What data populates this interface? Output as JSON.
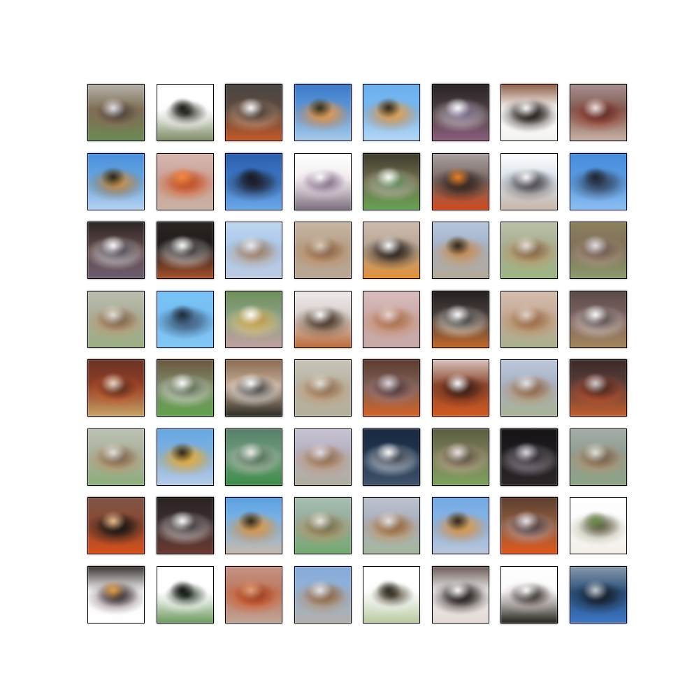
{
  "grid": {
    "rows": 8,
    "cols": 8,
    "tiles": [
      {
        "bg": "#7a6e55",
        "top": "#b9b3ad",
        "mid": "#8a6a5a",
        "bottom": "#6d8a55",
        "accent": "#e8e4ea",
        "blob": "#3e3a35"
      },
      {
        "bg": "#ffffff",
        "top": "#ffffff",
        "mid": "#f2f2f2",
        "bottom": "#7c8a65",
        "accent": "#1b1b15",
        "blob": "#2a2a20"
      },
      {
        "bg": "#5b4a40",
        "top": "#4b4542",
        "mid": "#c9a38c",
        "bottom": "#c25a2a",
        "accent": "#ffffff",
        "blob": "#2a2220"
      },
      {
        "bg": "#5f98d8",
        "top": "#3f79c4",
        "mid": "#c9844a",
        "bottom": "#a9cbe8",
        "accent": "#2a2a1a",
        "blob": "#e0a060"
      },
      {
        "bg": "#7ab9ef",
        "top": "#6fb0ea",
        "mid": "#c88a4e",
        "bottom": "#b7d6f3",
        "accent": "#2a2418",
        "blob": "#ddaa66"
      },
      {
        "bg": "#4a3d40",
        "top": "#2a2428",
        "mid": "#d9d3d8",
        "bottom": "#8b5f7c",
        "accent": "#ffffff",
        "blob": "#5b4b6e"
      },
      {
        "bg": "#ffffff",
        "top": "#8a5a46",
        "mid": "#2b2520",
        "bottom": "#f4f2ef",
        "accent": "#ffffff",
        "blob": "#1d1714"
      },
      {
        "bg": "#7e5a52",
        "top": "#a89090",
        "mid": "#9b3c2c",
        "bottom": "#c9b4a8",
        "accent": "#f1e5e5",
        "blob": "#532c28"
      },
      {
        "bg": "#6aa6df",
        "top": "#4d8fd6",
        "mid": "#8a7050",
        "bottom": "#b7d2ee",
        "accent": "#232318",
        "blob": "#d79a55"
      },
      {
        "bg": "#c8a196",
        "top": "#d6b7b3",
        "mid": "#d35f2f",
        "bottom": "#c9b2a5",
        "accent": "#ef8b45",
        "blob": "#b24f2c"
      },
      {
        "bg": "#3f79c4",
        "top": "#2c5da8",
        "mid": "#25324a",
        "bottom": "#6fa8e4",
        "accent": "#171a22",
        "blob": "#223"
      },
      {
        "bg": "#f3eef0",
        "top": "#ffffff",
        "mid": "#d6c6d2",
        "bottom": "#7a6b7c",
        "accent": "#ffffff",
        "blob": "#6b5574"
      },
      {
        "bg": "#6b6a4a",
        "top": "#3f3a30",
        "mid": "#cdbfbe",
        "bottom": "#69a258",
        "accent": "#ffffff",
        "blob": "#4a7a42"
      },
      {
        "bg": "#7a6a66",
        "top": "#aaa2a2",
        "mid": "#2a2220",
        "bottom": "#cc4a1f",
        "accent": "#e9842f",
        "blob": "#3a2a26"
      },
      {
        "bg": "#d8e2ea",
        "top": "#ffffff",
        "mid": "#6c6a70",
        "bottom": "#c7b6a9",
        "accent": "#ffffff",
        "blob": "#3f3b44"
      },
      {
        "bg": "#5b9ce0",
        "top": "#4b8bd7",
        "mid": "#3a4b63",
        "bottom": "#8fbef0",
        "accent": "#1d2433",
        "blob": "#354660"
      },
      {
        "bg": "#5a4745",
        "top": "#2d2626",
        "mid": "#e9e6ea",
        "bottom": "#6d5d70",
        "accent": "#ffffff",
        "blob": "#2c2330"
      },
      {
        "bg": "#1f1b1a",
        "top": "#2b2522",
        "mid": "#e7e4e6",
        "bottom": "#a6542f",
        "accent": "#ffffff",
        "blob": "#161311"
      },
      {
        "bg": "#a9c7ea",
        "top": "#c1d6ee",
        "mid": "#b79c86",
        "bottom": "#bfcbe0",
        "accent": "#e9eef5",
        "blob": "#8f7766"
      },
      {
        "bg": "#b2a08a",
        "top": "#c9b7a5",
        "mid": "#c08a62",
        "bottom": "#b9a896",
        "accent": "#dccfc2",
        "blob": "#7a5a44"
      },
      {
        "bg": "#b6a696",
        "top": "#cdbdb0",
        "mid": "#3a2f28",
        "bottom": "#e08f38",
        "accent": "#ffffff",
        "blob": "#2a2220"
      },
      {
        "bg": "#a4b2c8",
        "top": "#b9c7da",
        "mid": "#c89866",
        "bottom": "#b4a896",
        "accent": "#2a2418",
        "blob": "#bb8a5a"
      },
      {
        "bg": "#a6ad92",
        "top": "#bac2aa",
        "mid": "#c0905f",
        "bottom": "#9fb585",
        "accent": "#e9e2d8",
        "blob": "#6e5b44"
      },
      {
        "bg": "#7d705a",
        "top": "#8b8060",
        "mid": "#b59586",
        "bottom": "#8c9a70",
        "accent": "#e6e1e6",
        "blob": "#5a4a44"
      },
      {
        "bg": "#a8ac9a",
        "top": "#bcbfb0",
        "mid": "#c2926a",
        "bottom": "#9caf84",
        "accent": "#e5e2da",
        "blob": "#6a5948"
      },
      {
        "bg": "#78bff1",
        "top": "#7cc0f1",
        "mid": "#3a4f6a",
        "bottom": "#86c6f2",
        "accent": "#1f2a38",
        "blob": "#4a6b8c"
      },
      {
        "bg": "#8a9f86",
        "top": "#6f8f5a",
        "mid": "#e4d080",
        "bottom": "#c1a0a0",
        "accent": "#ffffff",
        "blob": "#b08a42"
      },
      {
        "bg": "#d8cfcc",
        "top": "#efeaea",
        "mid": "#6b5a4a",
        "bottom": "#b86a3a",
        "accent": "#ffffff",
        "blob": "#3b2a22"
      },
      {
        "bg": "#c9a9a8",
        "top": "#d8bebf",
        "mid": "#c5845a",
        "bottom": "#c6aaa8",
        "accent": "#e9d8d6",
        "blob": "#9c6a52"
      },
      {
        "bg": "#4a403e",
        "top": "#23201f",
        "mid": "#f1efe9",
        "bottom": "#c16a2c",
        "accent": "#ffffff",
        "blob": "#1b1817"
      },
      {
        "bg": "#c4a998",
        "top": "#d4bfb0",
        "mid": "#b7875c",
        "bottom": "#a9b08e",
        "accent": "#e2d6cc",
        "blob": "#8b6448"
      },
      {
        "bg": "#7b6460",
        "top": "#5a4a48",
        "mid": "#d9d3d4",
        "bottom": "#a4865e",
        "accent": "#ffffff",
        "blob": "#3a2c2a"
      },
      {
        "bg": "#8a3f2a",
        "top": "#6a3326",
        "mid": "#c75a2c",
        "bottom": "#c8a46a",
        "accent": "#f1d9c8",
        "blob": "#3e221a"
      },
      {
        "bg": "#7d8a6a",
        "top": "#6a553e",
        "mid": "#e6e3e4",
        "bottom": "#62a24e",
        "accent": "#ffffff",
        "blob": "#3a5030"
      },
      {
        "bg": "#c1aa96",
        "top": "#8a6a52",
        "mid": "#f2efef",
        "bottom": "#2c2a22",
        "accent": "#ffffff",
        "blob": "#1c1a15"
      },
      {
        "bg": "#b6b3a6",
        "top": "#c8c5b9",
        "mid": "#c19469",
        "bottom": "#b5b09c",
        "accent": "#e6e3dc",
        "blob": "#806550"
      },
      {
        "bg": "#7c5f55",
        "top": "#5b3a30",
        "mid": "#9c7a85",
        "bottom": "#d06428",
        "accent": "#e2dbe4",
        "blob": "#3a2824"
      },
      {
        "bg": "#8a4a30",
        "top": "#d8c3c0",
        "mid": "#632a1c",
        "bottom": "#d05a22",
        "accent": "#ffffff",
        "blob": "#2d1b15"
      },
      {
        "bg": "#a7b2c4",
        "top": "#bcc7d8",
        "mid": "#b88c64",
        "bottom": "#a9b394",
        "accent": "#e3e7ed",
        "blob": "#7a5d48"
      },
      {
        "bg": "#5a3e3a",
        "top": "#3a2a28",
        "mid": "#c05030",
        "bottom": "#c06030",
        "accent": "#d9d0d4",
        "blob": "#2a1d1a"
      },
      {
        "bg": "#a8b09e",
        "top": "#bcc2b4",
        "mid": "#c0926a",
        "bottom": "#8fae7e",
        "accent": "#e6e3de",
        "blob": "#6a5a48"
      },
      {
        "bg": "#7fb2e0",
        "top": "#6aa7df",
        "mid": "#d6a23c",
        "bottom": "#b9cbe6",
        "accent": "#2a2418",
        "blob": "#e0b050"
      },
      {
        "bg": "#6f9a7c",
        "top": "#587f6a",
        "mid": "#c9c2bf",
        "bottom": "#3f8a4a",
        "accent": "#eef0ec",
        "blob": "#2f5a3a"
      },
      {
        "bg": "#b3afbe",
        "top": "#c7c3d2",
        "mid": "#c0906a",
        "bottom": "#b2ad9e",
        "accent": "#e4e0e8",
        "blob": "#816650"
      },
      {
        "bg": "#20344c",
        "top": "#1a2a40",
        "mid": "#e9edf2",
        "bottom": "#41546b",
        "accent": "#ffffff",
        "blob": "#111a26"
      },
      {
        "bg": "#7a7e5a",
        "top": "#5b5d3f",
        "mid": "#c9a59a",
        "bottom": "#7ea160",
        "accent": "#efe6e6",
        "blob": "#3d4029"
      },
      {
        "bg": "#1e1a1e",
        "top": "#171417",
        "mid": "#b8b0bc",
        "bottom": "#2c2628",
        "accent": "#dedbe2",
        "blob": "#0f0c0f"
      },
      {
        "bg": "#8e9c92",
        "top": "#a3aea6",
        "mid": "#bd9066",
        "bottom": "#90a488",
        "accent": "#e3e4df",
        "blob": "#5f5446"
      },
      {
        "bg": "#8a4a34",
        "top": "#7a5548",
        "mid": "#1f1a18",
        "bottom": "#d5521e",
        "accent": "#f0c090",
        "blob": "#161210"
      },
      {
        "bg": "#3b2f2e",
        "top": "#2a2222",
        "mid": "#e7e2e4",
        "bottom": "#6a3a32",
        "accent": "#ffffff",
        "blob": "#181313"
      },
      {
        "bg": "#7fb6e6",
        "top": "#5f9fdd",
        "mid": "#c78a4a",
        "bottom": "#c8b8aa",
        "accent": "#2a2418",
        "blob": "#d9a05a"
      },
      {
        "bg": "#93aa9a",
        "top": "#a9c0b2",
        "mid": "#c28f5e",
        "bottom": "#77a874",
        "accent": "#ebe9e2",
        "blob": "#5d6a50"
      },
      {
        "bg": "#a8aebc",
        "top": "#bdc2ce",
        "mid": "#c58f58",
        "bottom": "#a7b79e",
        "accent": "#e6e5ea",
        "blob": "#805c3e"
      },
      {
        "bg": "#8ab4e4",
        "top": "#76a9e1",
        "mid": "#c98b4e",
        "bottom": "#bcc6d8",
        "accent": "#27231a",
        "blob": "#d8a05c"
      },
      {
        "bg": "#8a5a3e",
        "top": "#5a3e30",
        "mid": "#b4a9b6",
        "bottom": "#dc5a20",
        "accent": "#f0e6ec",
        "blob": "#352420"
      },
      {
        "bg": "#fbfbfb",
        "top": "#ffffff",
        "mid": "#b0b09a",
        "bottom": "#f2efe8",
        "accent": "#6a8a4a",
        "blob": "#5a5242"
      },
      {
        "bg": "#fafafa",
        "top": "#3a3432",
        "mid": "#7e6a74",
        "bottom": "#ffffff",
        "accent": "#e0a050",
        "blob": "#2a2326"
      },
      {
        "bg": "#ffffff",
        "top": "#ffffff",
        "mid": "#f8f8f8",
        "bottom": "#6e9860",
        "accent": "#111111",
        "blob": "#1a2a1a"
      },
      {
        "bg": "#b87a62",
        "top": "#c59284",
        "mid": "#d45a2a",
        "bottom": "#c1a598",
        "accent": "#e0a47c",
        "blob": "#8a3a22"
      },
      {
        "bg": "#93b2d4",
        "top": "#87aad8",
        "mid": "#b88a62",
        "bottom": "#b4b0aa",
        "accent": "#e3e8ef",
        "blob": "#7c5c44"
      },
      {
        "bg": "#ffffff",
        "top": "#ffffff",
        "mid": "#e8ecea",
        "bottom": "#b8c8a0",
        "accent": "#2a2a20",
        "blob": "#4a3f2c"
      },
      {
        "bg": "#f0eeee",
        "top": "#6a5a56",
        "mid": "#2e2522",
        "bottom": "#e3d9d4",
        "accent": "#ffffff",
        "blob": "#1f1a18"
      },
      {
        "bg": "#fbfafa",
        "top": "#ffffff",
        "mid": "#b8a8a8",
        "bottom": "#222018",
        "accent": "#ffffff",
        "blob": "#171510"
      },
      {
        "bg": "#2b4f7a",
        "top": "#8a9aaa",
        "mid": "#1d2a3a",
        "bottom": "#3f78c4",
        "accent": "#c8d0d8",
        "blob": "#121a26"
      }
    ]
  }
}
